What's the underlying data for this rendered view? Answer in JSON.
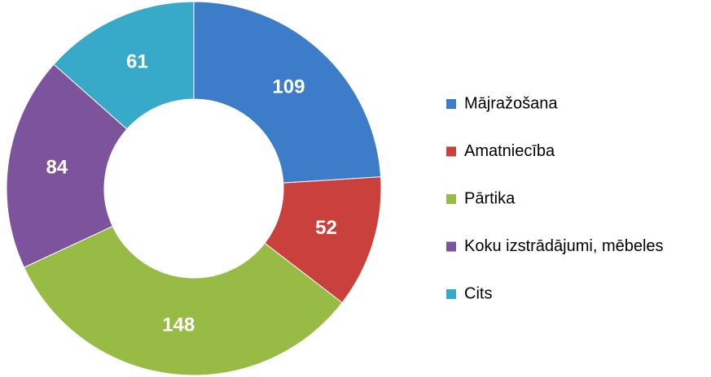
{
  "chart_data": {
    "type": "donut",
    "categories": [
      "Mājražošana",
      "Amatniecība",
      "Pārtika",
      "Koku izstrādājumi, mēbeles",
      "Cits"
    ],
    "values": [
      109,
      52,
      148,
      84,
      61
    ],
    "colors": [
      "#3d7cc9",
      "#c9403c",
      "#97bb45",
      "#7d539e",
      "#37a9c9"
    ],
    "legend": "right"
  }
}
